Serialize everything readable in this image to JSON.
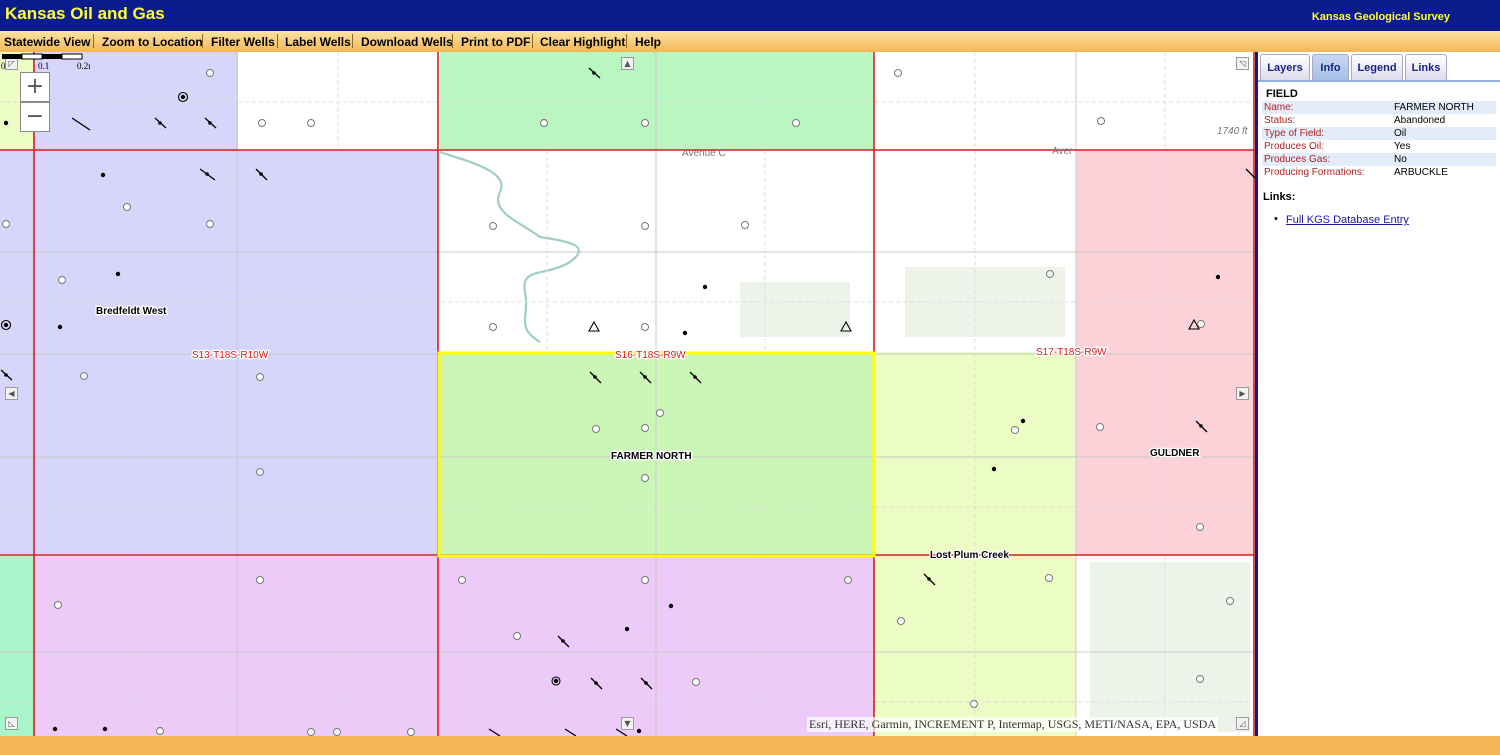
{
  "header": {
    "title": "Kansas Oil and Gas",
    "organization": "Kansas Geological Survey",
    "bg_color": "#0b1c8c",
    "text_color": "#ffff33"
  },
  "toolbar": {
    "items": [
      "Statewide View",
      "Zoom to Location",
      "Filter Wells",
      "Label Wells",
      "Download Wells",
      "Print to PDF",
      "Clear Highlight",
      "Help"
    ]
  },
  "map": {
    "zoom_in": "+",
    "zoom_out": "−",
    "fields": [
      {
        "name": "Bredfeldt West",
        "color": "#d8d5fb"
      },
      {
        "name": "FARMER NORTH",
        "color": "#ccf5b8",
        "highlighted": true
      },
      {
        "name": "GULDNER",
        "color": "#fcd2d8"
      },
      {
        "name": "Lost Plum Creek",
        "color": "#ebfcc4"
      }
    ],
    "section_labels": [
      "S13-T18S-R10W",
      "S16-T18S-R9W",
      "S17-T18S-R9W"
    ],
    "road_labels": [
      "Avenue C",
      "Aver",
      "1740 ft"
    ],
    "scale_bar": {
      "ticks": [
        "0",
        "0.1",
        "0.2mi"
      ]
    },
    "attribution": "Esri, HERE, Garmin, INCREMENT P, Intermap, USGS, METI/NASA, EPA, USDA",
    "highlight_color": "#ffff00",
    "section_line_color": "#d42020"
  },
  "panel": {
    "tabs": [
      "Layers",
      "Info",
      "Legend",
      "Links"
    ],
    "active_tab": "Info",
    "info_title": "FIELD",
    "attributes": [
      {
        "key": "Name:",
        "value": "FARMER NORTH"
      },
      {
        "key": "Status:",
        "value": "Abandoned"
      },
      {
        "key": "Type of Field:",
        "value": "Oil"
      },
      {
        "key": "Produces Oil:",
        "value": "Yes"
      },
      {
        "key": "Produces Gas:",
        "value": "No"
      },
      {
        "key": "Producing Formations:",
        "value": "ARBUCKLE"
      }
    ],
    "links_title": "Links:",
    "links": [
      "Full KGS Database Entry"
    ]
  }
}
